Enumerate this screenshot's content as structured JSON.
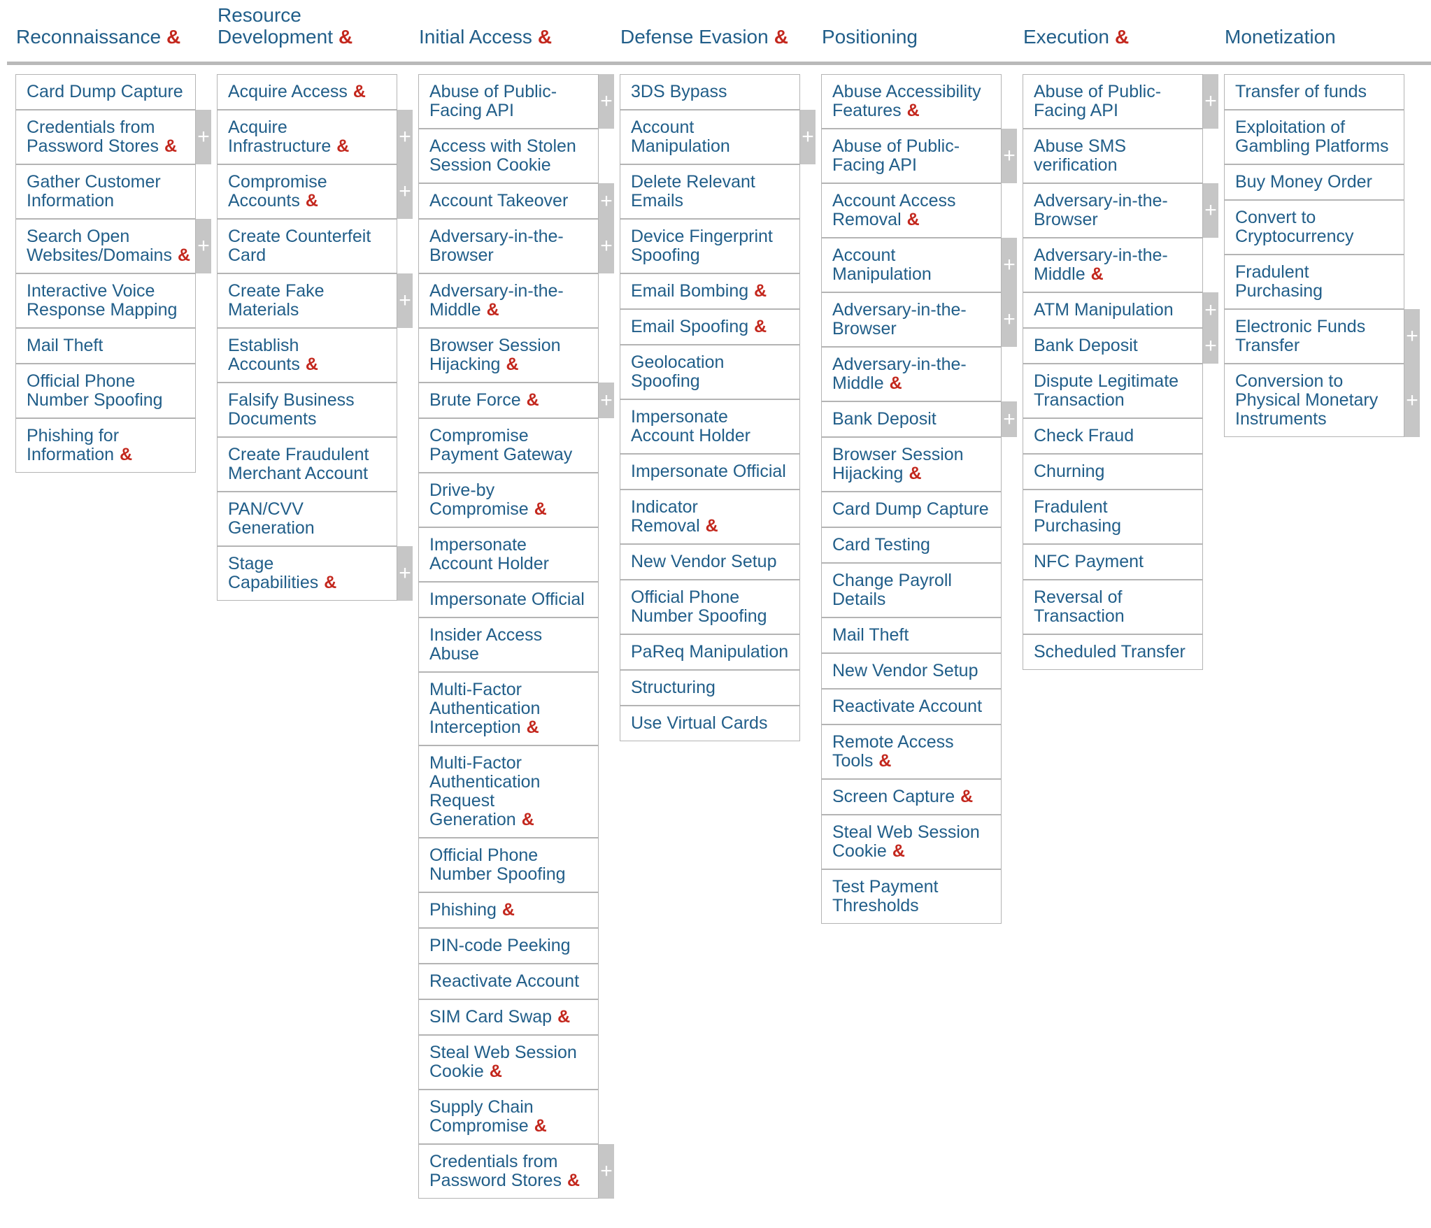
{
  "matrix": {
    "amp_glyph": "&",
    "plus_glyph": "+",
    "colors": {
      "text_blue": "#215e89",
      "accent_red": "#c3271d",
      "cell_border": "#b4b4b4",
      "tab_gray": "#c6c6c6",
      "divider_gray": "#b9b9b9"
    },
    "columns": [
      {
        "title": "Reconnaissance",
        "title_amp": true,
        "techniques": [
          {
            "label": "Card Dump Capture",
            "amp": false,
            "plus": false
          },
          {
            "label": "Credentials from\nPassword Stores",
            "amp": true,
            "plus": true
          },
          {
            "label": "Gather Customer\nInformation",
            "amp": false,
            "plus": false
          },
          {
            "label": "Search Open\nWebsites/Domains",
            "amp": true,
            "plus": true
          },
          {
            "label": "Interactive Voice\nResponse Mapping",
            "amp": false,
            "plus": false
          },
          {
            "label": "Mail Theft",
            "amp": false,
            "plus": false
          },
          {
            "label": "Official Phone\nNumber Spoofing",
            "amp": false,
            "plus": false
          },
          {
            "label": "Phishing for\nInformation",
            "amp": true,
            "plus": false
          }
        ]
      },
      {
        "title": "Resource\nDevelopment",
        "title_amp": true,
        "techniques": [
          {
            "label": "Acquire Access",
            "amp": true,
            "plus": false
          },
          {
            "label": "Acquire\nInfrastructure",
            "amp": true,
            "plus": true
          },
          {
            "label": "Compromise\nAccounts",
            "amp": true,
            "plus": true
          },
          {
            "label": "Create Counterfeit\nCard",
            "amp": false,
            "plus": false
          },
          {
            "label": "Create Fake\nMaterials",
            "amp": false,
            "plus": true
          },
          {
            "label": "Establish\nAccounts",
            "amp": true,
            "plus": false
          },
          {
            "label": "Falsify Business\nDocuments",
            "amp": false,
            "plus": false
          },
          {
            "label": "Create Fraudulent\nMerchant Account",
            "amp": false,
            "plus": false
          },
          {
            "label": "PAN/CVV\nGeneration",
            "amp": false,
            "plus": false
          },
          {
            "label": "Stage\nCapabilities",
            "amp": true,
            "plus": true
          }
        ]
      },
      {
        "title": "Initial Access",
        "title_amp": true,
        "techniques": [
          {
            "label": "Abuse of Public-\nFacing API",
            "amp": false,
            "plus": true
          },
          {
            "label": "Access with Stolen\nSession Cookie",
            "amp": false,
            "plus": false
          },
          {
            "label": "Account Takeover",
            "amp": false,
            "plus": true
          },
          {
            "label": "Adversary-in-the-\nBrowser",
            "amp": false,
            "plus": true
          },
          {
            "label": "Adversary-in-the-\nMiddle",
            "amp": true,
            "plus": false
          },
          {
            "label": "Browser Session\nHijacking",
            "amp": true,
            "plus": false
          },
          {
            "label": "Brute Force",
            "amp": true,
            "plus": true
          },
          {
            "label": "Compromise\nPayment Gateway",
            "amp": false,
            "plus": false
          },
          {
            "label": "Drive-by\nCompromise",
            "amp": true,
            "plus": false
          },
          {
            "label": "Impersonate\nAccount Holder",
            "amp": false,
            "plus": false
          },
          {
            "label": "Impersonate Official",
            "amp": false,
            "plus": false
          },
          {
            "label": "Insider Access\nAbuse",
            "amp": false,
            "plus": false
          },
          {
            "label": "Multi-Factor\nAuthentication\nInterception",
            "amp": true,
            "plus": false
          },
          {
            "label": "Multi-Factor\nAuthentication\nRequest\nGeneration",
            "amp": true,
            "plus": false
          },
          {
            "label": "Official Phone\nNumber Spoofing",
            "amp": false,
            "plus": false
          },
          {
            "label": "Phishing",
            "amp": true,
            "plus": false
          },
          {
            "label": "PIN-code Peeking",
            "amp": false,
            "plus": false
          },
          {
            "label": "Reactivate Account",
            "amp": false,
            "plus": false
          },
          {
            "label": "SIM Card Swap",
            "amp": true,
            "plus": false
          },
          {
            "label": "Steal Web Session\nCookie",
            "amp": true,
            "plus": false
          },
          {
            "label": "Supply Chain\nCompromise",
            "amp": true,
            "plus": false
          },
          {
            "label": "Credentials from\nPassword Stores",
            "amp": true,
            "plus": true
          }
        ]
      },
      {
        "title": "Defense Evasion",
        "title_amp": true,
        "techniques": [
          {
            "label": "3DS Bypass",
            "amp": false,
            "plus": false
          },
          {
            "label": "Account\nManipulation",
            "amp": false,
            "plus": true
          },
          {
            "label": "Delete Relevant\nEmails",
            "amp": false,
            "plus": false
          },
          {
            "label": "Device Fingerprint\nSpoofing",
            "amp": false,
            "plus": false
          },
          {
            "label": "Email Bombing",
            "amp": true,
            "plus": false
          },
          {
            "label": "Email Spoofing",
            "amp": true,
            "plus": false
          },
          {
            "label": "Geolocation\nSpoofing",
            "amp": false,
            "plus": false
          },
          {
            "label": "Impersonate\nAccount Holder",
            "amp": false,
            "plus": false
          },
          {
            "label": "Impersonate Official",
            "amp": false,
            "plus": false
          },
          {
            "label": "Indicator\nRemoval",
            "amp": true,
            "plus": false
          },
          {
            "label": "New Vendor Setup",
            "amp": false,
            "plus": false
          },
          {
            "label": "Official Phone\nNumber Spoofing",
            "amp": false,
            "plus": false
          },
          {
            "label": "PaReq Manipulation",
            "amp": false,
            "plus": false
          },
          {
            "label": "Structuring",
            "amp": false,
            "plus": false
          },
          {
            "label": "Use Virtual Cards",
            "amp": false,
            "plus": false
          }
        ]
      },
      {
        "title": "Positioning",
        "title_amp": false,
        "techniques": [
          {
            "label": "Abuse Accessibility\nFeatures",
            "amp": true,
            "plus": false
          },
          {
            "label": "Abuse of Public-\nFacing API",
            "amp": false,
            "plus": true
          },
          {
            "label": "Account Access\nRemoval",
            "amp": true,
            "plus": false
          },
          {
            "label": "Account\nManipulation",
            "amp": false,
            "plus": true
          },
          {
            "label": "Adversary-in-the-\nBrowser",
            "amp": false,
            "plus": true
          },
          {
            "label": "Adversary-in-the-\nMiddle",
            "amp": true,
            "plus": false
          },
          {
            "label": "Bank Deposit",
            "amp": false,
            "plus": true
          },
          {
            "label": "Browser Session\nHijacking",
            "amp": true,
            "plus": false
          },
          {
            "label": "Card Dump Capture",
            "amp": false,
            "plus": false
          },
          {
            "label": "Card Testing",
            "amp": false,
            "plus": false
          },
          {
            "label": "Change Payroll\nDetails",
            "amp": false,
            "plus": false
          },
          {
            "label": "Mail Theft",
            "amp": false,
            "plus": false
          },
          {
            "label": "New Vendor Setup",
            "amp": false,
            "plus": false
          },
          {
            "label": "Reactivate Account",
            "amp": false,
            "plus": false
          },
          {
            "label": "Remote Access\nTools",
            "amp": true,
            "plus": false
          },
          {
            "label": "Screen Capture",
            "amp": true,
            "plus": false
          },
          {
            "label": "Steal Web Session\nCookie",
            "amp": true,
            "plus": false
          },
          {
            "label": "Test Payment\nThresholds",
            "amp": false,
            "plus": false
          }
        ]
      },
      {
        "title": "Execution",
        "title_amp": true,
        "techniques": [
          {
            "label": "Abuse of Public-\nFacing API",
            "amp": false,
            "plus": true
          },
          {
            "label": "Abuse SMS\nverification",
            "amp": false,
            "plus": false
          },
          {
            "label": "Adversary-in-the-\nBrowser",
            "amp": false,
            "plus": true
          },
          {
            "label": "Adversary-in-the-\nMiddle",
            "amp": true,
            "plus": false
          },
          {
            "label": "ATM Manipulation",
            "amp": false,
            "plus": true
          },
          {
            "label": "Bank Deposit",
            "amp": false,
            "plus": true
          },
          {
            "label": "Dispute Legitimate\nTransaction",
            "amp": false,
            "plus": false
          },
          {
            "label": "Check Fraud",
            "amp": false,
            "plus": false
          },
          {
            "label": "Churning",
            "amp": false,
            "plus": false
          },
          {
            "label": "Fradulent\nPurchasing",
            "amp": false,
            "plus": false
          },
          {
            "label": "NFC Payment",
            "amp": false,
            "plus": false
          },
          {
            "label": "Reversal of\nTransaction",
            "amp": false,
            "plus": false
          },
          {
            "label": "Scheduled Transfer",
            "amp": false,
            "plus": false
          }
        ]
      },
      {
        "title": "Monetization",
        "title_amp": false,
        "techniques": [
          {
            "label": "Transfer of funds",
            "amp": false,
            "plus": false
          },
          {
            "label": "Exploitation of\nGambling Platforms",
            "amp": false,
            "plus": false
          },
          {
            "label": "Buy Money Order",
            "amp": false,
            "plus": false
          },
          {
            "label": "Convert to\nCryptocurrency",
            "amp": false,
            "plus": false
          },
          {
            "label": "Fradulent\nPurchasing",
            "amp": false,
            "plus": false
          },
          {
            "label": "Electronic Funds\nTransfer",
            "amp": false,
            "plus": true
          },
          {
            "label": "Conversion to\nPhysical Monetary\nInstruments",
            "amp": false,
            "plus": true
          }
        ]
      }
    ]
  }
}
